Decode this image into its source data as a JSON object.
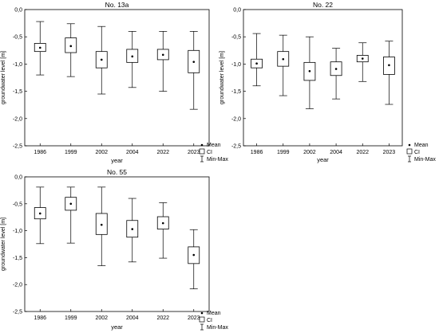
{
  "chart_data": [
    {
      "type": "box",
      "title": "No. 13a",
      "xlabel": "year",
      "ylabel": "groundwater level [m]",
      "ylim": [
        -2.5,
        0.0
      ],
      "yticks": [
        0.0,
        -0.5,
        -1.0,
        -1.5,
        -2.0,
        -2.5
      ],
      "ytick_labels": [
        "0,0",
        "-0,5",
        "-1,0",
        "-1,5",
        "-2,0",
        "-2,5"
      ],
      "categories": [
        "1986",
        "1999",
        "2002",
        "2004",
        "2022",
        "2023"
      ],
      "boxes": [
        {
          "mean": -0.7,
          "ci_low": -0.77,
          "ci_high": -0.62,
          "min": -1.2,
          "max": -0.22
        },
        {
          "mean": -0.67,
          "ci_low": -0.79,
          "ci_high": -0.52,
          "min": -1.23,
          "max": -0.26
        },
        {
          "mean": -0.92,
          "ci_low": -1.07,
          "ci_high": -0.77,
          "min": -1.55,
          "max": -0.31
        },
        {
          "mean": -0.86,
          "ci_low": -0.97,
          "ci_high": -0.73,
          "min": -1.43,
          "max": -0.4
        },
        {
          "mean": -0.83,
          "ci_low": -0.92,
          "ci_high": -0.73,
          "min": -1.5,
          "max": -0.4
        },
        {
          "mean": -0.96,
          "ci_low": -1.16,
          "ci_high": -0.75,
          "min": -1.83,
          "max": -0.4
        }
      ],
      "legend": [
        "Mean",
        "CI",
        "Min-Max"
      ]
    },
    {
      "type": "box",
      "title": "No. 22",
      "xlabel": "year",
      "ylabel": "groundwater level [m]",
      "ylim": [
        -2.5,
        0.0
      ],
      "yticks": [
        0.0,
        -0.5,
        -1.0,
        -1.5,
        -2.0,
        -2.5
      ],
      "ytick_labels": [
        "0,0",
        "-0,5",
        "-1,0",
        "-1,5",
        "-2,0",
        "-2,5"
      ],
      "categories": [
        "1986",
        "1999",
        "2002",
        "2004",
        "2022",
        "2023"
      ],
      "boxes": [
        {
          "mean": -0.99,
          "ci_low": -1.07,
          "ci_high": -0.91,
          "min": -1.4,
          "max": -0.44
        },
        {
          "mean": -0.91,
          "ci_low": -1.04,
          "ci_high": -0.77,
          "min": -1.58,
          "max": -0.47
        },
        {
          "mean": -1.13,
          "ci_low": -1.3,
          "ci_high": -0.97,
          "min": -1.82,
          "max": -0.5
        },
        {
          "mean": -1.09,
          "ci_low": -1.21,
          "ci_high": -0.96,
          "min": -1.64,
          "max": -0.71
        },
        {
          "mean": -0.9,
          "ci_low": -0.96,
          "ci_high": -0.84,
          "min": -1.32,
          "max": -0.61
        },
        {
          "mean": -1.02,
          "ci_low": -1.19,
          "ci_high": -0.87,
          "min": -1.74,
          "max": -0.58
        }
      ],
      "legend": [
        "Mean",
        "CI",
        "Min-Max"
      ]
    },
    {
      "type": "box",
      "title": "No. 55",
      "xlabel": "year",
      "ylabel": "groundwater level [m]",
      "ylim": [
        -2.5,
        0.0
      ],
      "yticks": [
        0.0,
        -0.5,
        -1.0,
        -1.5,
        -2.0,
        -2.5
      ],
      "ytick_labels": [
        "0,0",
        "-0,5",
        "-1,0",
        "-1,5",
        "-2,0",
        "-2,5"
      ],
      "categories": [
        "1986",
        "1999",
        "2002",
        "2004",
        "2022",
        "2023"
      ],
      "boxes": [
        {
          "mean": -0.68,
          "ci_low": -0.78,
          "ci_high": -0.57,
          "min": -1.24,
          "max": -0.19
        },
        {
          "mean": -0.5,
          "ci_low": -0.62,
          "ci_high": -0.38,
          "min": -1.23,
          "max": -0.19
        },
        {
          "mean": -0.89,
          "ci_low": -1.07,
          "ci_high": -0.68,
          "min": -1.65,
          "max": -0.19
        },
        {
          "mean": -0.97,
          "ci_low": -1.12,
          "ci_high": -0.81,
          "min": -1.58,
          "max": -0.4
        },
        {
          "mean": -0.86,
          "ci_low": -0.97,
          "ci_high": -0.74,
          "min": -1.51,
          "max": -0.48
        },
        {
          "mean": -1.45,
          "ci_low": -1.61,
          "ci_high": -1.3,
          "min": -2.08,
          "max": -0.98
        }
      ],
      "legend": [
        "Mean",
        "CI",
        "Min-Max"
      ]
    }
  ]
}
